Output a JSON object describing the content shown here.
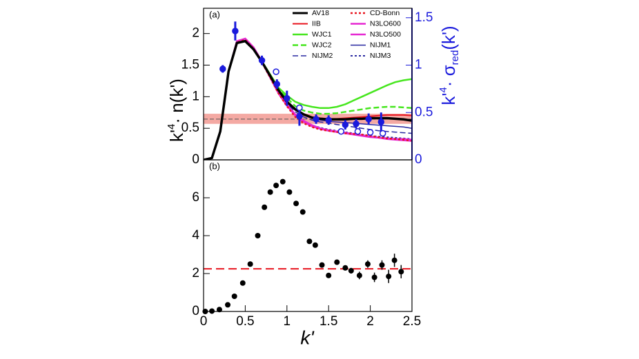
{
  "chart_data": [
    {
      "type": "line",
      "panel_label": "(a)",
      "ylabel": {
        "base": "k'",
        "sup": "4",
        "rest": "· n(k')"
      },
      "y2label": {
        "base": "k'",
        "sup": "4",
        "mid": "· σ",
        "sub": "red",
        "rest": "(k')"
      },
      "xlim": [
        0,
        2.5
      ],
      "ylim": [
        0,
        2.4
      ],
      "yticks": [
        0,
        0.5,
        1,
        1.5,
        2
      ],
      "y2lim": [
        0,
        1.6
      ],
      "y2ticks": [
        0,
        0.5,
        1,
        1.5
      ],
      "y2color": "#1a1adc",
      "band": [
        0.57,
        0.73
      ],
      "band_line": 0.645,
      "band_color": "#f08c84",
      "x": [
        0,
        0.1,
        0.2,
        0.3,
        0.4,
        0.5,
        0.6,
        0.7,
        0.8,
        0.9,
        1.0,
        1.1,
        1.2,
        1.3,
        1.4,
        1.5,
        1.6,
        1.7,
        1.8,
        1.9,
        2.0,
        2.1,
        2.2,
        2.3,
        2.4,
        2.5
      ],
      "series": [
        {
          "name": "AV18",
          "color": "#000000",
          "dash": "solid",
          "width": 3.5,
          "values": [
            0,
            0.03,
            0.45,
            1.4,
            1.85,
            1.88,
            1.75,
            1.55,
            1.33,
            1.1,
            0.92,
            0.8,
            0.72,
            0.67,
            0.65,
            0.64,
            0.64,
            0.64,
            0.65,
            0.65,
            0.66,
            0.66,
            0.66,
            0.65,
            0.64,
            0.62
          ]
        },
        {
          "name": "IIB",
          "color": "#e8141e",
          "dash": "solid",
          "width": 2,
          "values": [
            0,
            0.03,
            0.45,
            1.4,
            1.85,
            1.88,
            1.75,
            1.55,
            1.33,
            1.1,
            0.93,
            0.81,
            0.73,
            0.68,
            0.66,
            0.65,
            0.65,
            0.66,
            0.67,
            0.68,
            0.69,
            0.7,
            0.71,
            0.71,
            0.71,
            0.7
          ]
        },
        {
          "name": "WJC1",
          "color": "#46e61e",
          "dash": "solid",
          "width": 2.5,
          "values": [
            0,
            0.03,
            0.45,
            1.4,
            1.85,
            1.88,
            1.75,
            1.56,
            1.35,
            1.14,
            1.02,
            0.92,
            0.87,
            0.84,
            0.82,
            0.82,
            0.84,
            0.88,
            0.94,
            1.0,
            1.06,
            1.12,
            1.18,
            1.23,
            1.26,
            1.28
          ]
        },
        {
          "name": "WJC2",
          "color": "#46e61e",
          "dash": "dashed",
          "width": 2.5,
          "values": [
            0,
            0.03,
            0.45,
            1.4,
            1.85,
            1.88,
            1.75,
            1.56,
            1.34,
            1.12,
            0.98,
            0.85,
            0.78,
            0.75,
            0.73,
            0.73,
            0.74,
            0.76,
            0.78,
            0.8,
            0.82,
            0.83,
            0.84,
            0.84,
            0.83,
            0.82
          ]
        },
        {
          "name": "NIJM2",
          "color": "#2828a0",
          "dash": "dashed",
          "width": 1.5,
          "values": [
            0,
            0.03,
            0.45,
            1.4,
            1.86,
            1.89,
            1.76,
            1.55,
            1.32,
            1.08,
            0.9,
            0.76,
            0.68,
            0.63,
            0.6,
            0.58,
            0.56,
            0.54,
            0.52,
            0.5,
            0.48,
            0.46,
            0.45,
            0.44,
            0.43,
            0.42
          ]
        },
        {
          "name": "CD-Bonn",
          "color": "#e8141e",
          "dash": "dotted",
          "width": 2.5,
          "values": [
            0,
            0.03,
            0.45,
            1.4,
            1.86,
            1.9,
            1.76,
            1.54,
            1.3,
            1.05,
            0.85,
            0.68,
            0.58,
            0.52,
            0.48,
            0.46,
            0.44,
            0.42,
            0.41,
            0.4,
            0.38,
            0.36,
            0.34,
            0.33,
            0.32,
            0.3
          ]
        },
        {
          "name": "N3LO600",
          "color": "#e628d2",
          "dash": "solid",
          "width": 2.5,
          "values": [
            0,
            0.03,
            0.45,
            1.4,
            1.88,
            1.92,
            1.78,
            1.56,
            1.31,
            1.06,
            0.88,
            0.72,
            0.62,
            0.55,
            0.5,
            0.47,
            0.45,
            0.43,
            0.41,
            0.39,
            0.37,
            0.35,
            0.33,
            0.32,
            0.31,
            0.3
          ]
        },
        {
          "name": "N3LO500",
          "color": "#e628d2",
          "dash": "solid",
          "width": 2.5,
          "values": [
            0,
            0.03,
            0.45,
            1.4,
            1.88,
            1.92,
            1.78,
            1.55,
            1.3,
            1.05,
            0.86,
            0.7,
            0.6,
            0.53,
            0.49,
            0.46,
            0.44,
            0.42,
            0.4,
            0.38,
            0.36,
            0.35,
            0.34,
            0.33,
            0.33,
            0.32
          ]
        },
        {
          "name": "NIJM1",
          "color": "#2828a0",
          "dash": "solid",
          "width": 1.5,
          "values": [
            0,
            0.03,
            0.45,
            1.4,
            1.86,
            1.89,
            1.76,
            1.55,
            1.33,
            1.09,
            0.92,
            0.79,
            0.71,
            0.66,
            0.63,
            0.61,
            0.6,
            0.59,
            0.58,
            0.57,
            0.56,
            0.55,
            0.54,
            0.53,
            0.52,
            0.5
          ]
        },
        {
          "name": "NIJM3",
          "color": "#2828a0",
          "dash": "dotted",
          "width": 2,
          "values": [
            0,
            0.03,
            0.45,
            1.4,
            1.87,
            1.9,
            1.77,
            1.55,
            1.31,
            1.06,
            0.87,
            0.71,
            0.61,
            0.55,
            0.51,
            0.48,
            0.46,
            0.44,
            0.42,
            0.4,
            0.38,
            0.37,
            0.36,
            0.35,
            0.34,
            0.33
          ]
        }
      ],
      "points": [
        {
          "axis": "y2",
          "color": "#1a1adc",
          "filled": true,
          "x": [
            0.23,
            0.38,
            0.7,
            0.88,
            1.0,
            1.15,
            1.35,
            1.5,
            1.7,
            1.83,
            1.98,
            2.13
          ],
          "values": [
            0.96,
            1.36,
            1.05,
            0.8,
            0.65,
            0.46,
            0.43,
            0.42,
            0.37,
            0.38,
            0.43,
            0.4
          ],
          "errors": [
            0.04,
            0.1,
            0.05,
            0.05,
            0.08,
            0.1,
            0.05,
            0.05,
            0.05,
            0.05,
            0.06,
            0.1
          ]
        },
        {
          "axis": "y2",
          "color": "#1a1adc",
          "filled": false,
          "x": [
            0.87,
            1.15,
            1.65,
            1.85,
            2.0,
            2.15
          ],
          "values": [
            0.93,
            0.55,
            0.3,
            0.3,
            0.29,
            0.28
          ]
        }
      ]
    },
    {
      "type": "scatter",
      "panel_label": "(b)",
      "xlabel": "k'",
      "xlim": [
        0,
        2.5
      ],
      "xticks": [
        0,
        0.5,
        1,
        1.5,
        2,
        2.5
      ],
      "ylim": [
        0,
        8
      ],
      "yticks": [
        0,
        2,
        4,
        6
      ],
      "hline": 2.25,
      "hline_color": "#e8141e",
      "color": "#000000",
      "x": [
        0.02,
        0.1,
        0.19,
        0.29,
        0.37,
        0.47,
        0.56,
        0.65,
        0.73,
        0.8,
        0.87,
        0.95,
        1.03,
        1.11,
        1.19,
        1.27,
        1.34,
        1.42,
        1.5,
        1.6,
        1.7,
        1.77,
        1.87,
        1.97,
        2.05,
        2.14,
        2.22,
        2.29,
        2.37
      ],
      "values": [
        0,
        0.02,
        0.1,
        0.35,
        0.8,
        1.5,
        2.5,
        4.0,
        5.5,
        6.3,
        6.65,
        6.85,
        6.3,
        5.7,
        5.25,
        3.7,
        3.5,
        2.45,
        1.9,
        2.6,
        2.3,
        2.15,
        1.9,
        2.5,
        1.8,
        2.45,
        1.85,
        2.7,
        2.1
      ],
      "errors": [
        0.05,
        0.05,
        0.05,
        0.05,
        0.05,
        0.05,
        0.05,
        0.05,
        0.05,
        0.05,
        0.05,
        0.05,
        0.05,
        0.05,
        0.05,
        0.08,
        0.08,
        0.08,
        0.1,
        0.1,
        0.1,
        0.15,
        0.2,
        0.2,
        0.25,
        0.25,
        0.35,
        0.35,
        0.35
      ]
    }
  ]
}
